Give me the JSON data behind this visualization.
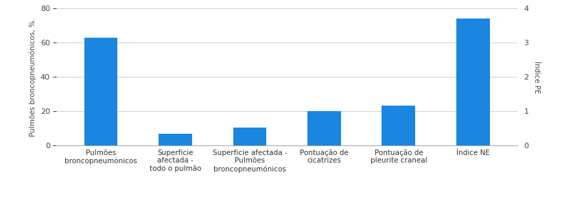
{
  "categories": [
    "Pulmões\nbroncopneumónicos",
    "Superficie\nafectada -\ntodo o pulmão",
    "Superficie afectada -\nPulmões\nbroncopneumónicos",
    "Pontuação de\ncicatrizes",
    "Pontuação de\npleurite craneal",
    "Índice NE"
  ],
  "values": [
    63,
    7,
    10.5,
    20,
    23.5,
    74
  ],
  "bar_color": "#1a86e0",
  "ylabel_left": "Pulmões broncopneumónicos, %.",
  "ylabel_right": "Índice PE",
  "ylim_left": [
    0,
    80
  ],
  "ylim_right": [
    0,
    4
  ],
  "yticks_left": [
    0,
    20,
    40,
    60,
    80
  ],
  "yticks_right": [
    0,
    1,
    2,
    3,
    4
  ],
  "background_color": "#ffffff",
  "grid_color": "#d0d0d0",
  "figsize": [
    8.2,
    3.12
  ],
  "dpi": 100
}
